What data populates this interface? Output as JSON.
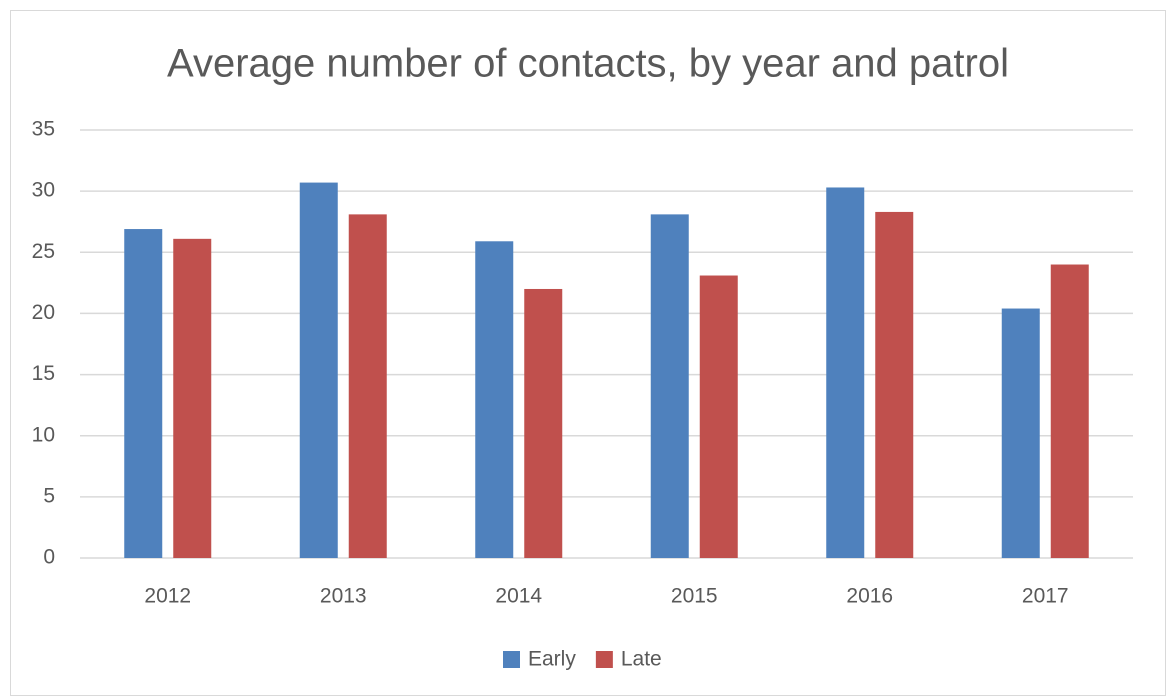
{
  "chart_data": {
    "type": "bar",
    "title": "Average number of contacts, by year and patrol",
    "categories": [
      "2012",
      "2013",
      "2014",
      "2015",
      "2016",
      "2017"
    ],
    "series": [
      {
        "name": "Early",
        "color": "#4f81bd",
        "values": [
          26.9,
          30.7,
          25.9,
          28.1,
          30.3,
          20.4
        ]
      },
      {
        "name": "Late",
        "color": "#c0504d",
        "values": [
          26.1,
          28.1,
          22.0,
          23.1,
          28.3,
          24.0
        ]
      }
    ],
    "ylim": [
      0,
      35
    ],
    "yticks": [
      0,
      5,
      10,
      15,
      20,
      25,
      30,
      35
    ],
    "grid": true,
    "legend": "bottom"
  }
}
